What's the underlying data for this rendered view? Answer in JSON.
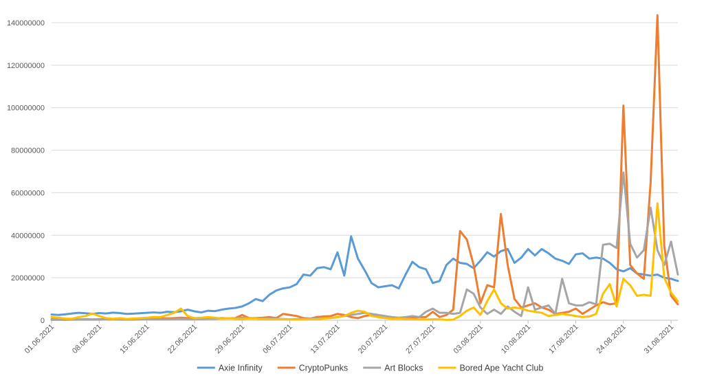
{
  "chart_data": {
    "type": "line",
    "title": "",
    "xlabel": "",
    "ylabel": "",
    "ylim": [
      0,
      140000000
    ],
    "y_ticks": [
      "0",
      "20000000",
      "40000000",
      "60000000",
      "80000000",
      "100000000",
      "120000000",
      "140000000"
    ],
    "x_tick_labels": [
      "01.06.2021",
      "08.06.2021",
      "15.06.2021",
      "22.06.2021",
      "29.06.2021",
      "06.07.2021",
      "13.07.2021",
      "20.07.2021",
      "27.07.2021",
      "03.08.2021",
      "10.08.2021",
      "17.08.2021",
      "24.08.2021",
      "31.08.2021"
    ],
    "grid": true,
    "legend_position": "bottom",
    "series": [
      {
        "name": "Axie Infinity",
        "color": "#5B9BD5",
        "values": [
          2700000,
          2500000,
          2800000,
          3200000,
          3500000,
          3300000,
          3000000,
          3400000,
          3200000,
          3600000,
          3400000,
          3000000,
          3100000,
          3300000,
          3500000,
          3700000,
          3500000,
          4000000,
          3800000,
          4200000,
          5000000,
          4200000,
          3700000,
          4500000,
          4300000,
          5000000,
          5500000,
          5800000,
          6500000,
          8000000,
          10000000,
          9000000,
          12000000,
          14000000,
          15000000,
          15500000,
          17000000,
          21500000,
          21000000,
          24500000,
          25000000,
          24000000,
          32000000,
          21000000,
          39500000,
          29000000,
          23500000,
          17500000,
          15500000,
          16000000,
          16500000,
          15000000,
          21500000,
          27500000,
          25000000,
          24000000,
          17500000,
          18500000,
          26000000,
          29000000,
          27000000,
          26500000,
          24500000,
          28000000,
          32000000,
          30000000,
          32500000,
          33500000,
          27000000,
          29500000,
          33500000,
          30500000,
          33500000,
          31500000,
          29000000,
          28000000,
          26500000,
          31000000,
          31500000,
          29000000,
          29500000,
          29000000,
          27000000,
          24000000,
          23000000,
          24500000,
          22000000,
          21500000,
          21000000,
          21500000,
          20000000,
          19500000,
          18500000
        ]
      },
      {
        "name": "CryptoPunks",
        "color": "#ED7D31",
        "values": [
          500000,
          300000,
          300000,
          400000,
          400000,
          500000,
          400000,
          500000,
          600000,
          500000,
          400000,
          300000,
          400000,
          600000,
          700000,
          800000,
          800000,
          900000,
          1000000,
          1200000,
          1000000,
          800000,
          700000,
          800000,
          900000,
          1000000,
          900000,
          1000000,
          2500000,
          1000000,
          1000000,
          1200000,
          1500000,
          1000000,
          3000000,
          2500000,
          2000000,
          1000000,
          800000,
          1500000,
          1800000,
          2000000,
          3000000,
          2500000,
          1500000,
          1000000,
          2000000,
          2500000,
          1500000,
          1000000,
          800000,
          1000000,
          1200000,
          1000000,
          1500000,
          1500000,
          4000000,
          1500000,
          2500000,
          5000000,
          42000000,
          38000000,
          26000000,
          8000000,
          16500000,
          15500000,
          50000000,
          26000000,
          10000000,
          6000000,
          7000000,
          8000000,
          6000000,
          5000000,
          3000000,
          3500000,
          4000000,
          5500000,
          3000000,
          5000000,
          7000000,
          8500000,
          7500000,
          8000000,
          101000000,
          26000000,
          22000000,
          19500000,
          65000000,
          143500000,
          35000000,
          11500000,
          7500000
        ]
      },
      {
        "name": "Art Blocks",
        "color": "#A5A5A5",
        "values": [
          200000,
          200000,
          200000,
          300000,
          300000,
          300000,
          300000,
          300000,
          400000,
          400000,
          300000,
          300000,
          300000,
          400000,
          500000,
          400000,
          400000,
          500000,
          500000,
          600000,
          500000,
          500000,
          600000,
          700000,
          700000,
          800000,
          900000,
          1000000,
          1200000,
          1000000,
          800000,
          700000,
          800000,
          700000,
          600000,
          500000,
          500000,
          600000,
          700000,
          800000,
          900000,
          1000000,
          1500000,
          2000000,
          2500000,
          3000000,
          3500000,
          3000000,
          2500000,
          2000000,
          1500000,
          1200000,
          1500000,
          2000000,
          1500000,
          4000000,
          5500000,
          3500000,
          3500000,
          3000000,
          3500000,
          14500000,
          12500000,
          6000000,
          3000000,
          5000000,
          3000000,
          6500000,
          4000000,
          2000000,
          15500000,
          5000000,
          6000000,
          7000000,
          3000000,
          19500000,
          8000000,
          7000000,
          7000000,
          8500000,
          7500000,
          35500000,
          36000000,
          34000000,
          69500000,
          36000000,
          29500000,
          33000000,
          53000000,
          33000000,
          26000000,
          37000000,
          21500000
        ]
      },
      {
        "name": "Bored Ape Yacht Club",
        "color": "#FFC000",
        "values": [
          1500000,
          1200000,
          800000,
          700000,
          1500000,
          2000000,
          3200000,
          2000000,
          1000000,
          700000,
          1000000,
          600000,
          800000,
          1000000,
          1200000,
          1500000,
          1500000,
          2500000,
          3500000,
          5500000,
          2000000,
          1000000,
          1200000,
          1500000,
          1200000,
          800000,
          1000000,
          700000,
          600000,
          800000,
          800000,
          600000,
          500000,
          500000,
          500000,
          400000,
          300000,
          400000,
          500000,
          500000,
          800000,
          1000000,
          1500000,
          2000000,
          3500000,
          4500000,
          4000000,
          2000000,
          1500000,
          1000000,
          700000,
          800000,
          600000,
          500000,
          400000,
          300000,
          500000,
          400000,
          200000,
          300000,
          2000000,
          4500000,
          6000000,
          2500000,
          9000000,
          14500000,
          8000000,
          5500000,
          6000000,
          5500000,
          4500000,
          4000000,
          3500000,
          2000000,
          2500000,
          3000000,
          2500000,
          2000000,
          1500000,
          1800000,
          3000000,
          12500000,
          17000000,
          6500000,
          19500000,
          16500000,
          11500000,
          12000000,
          11500000,
          55000000,
          20000000,
          13000000,
          9000000
        ]
      }
    ]
  }
}
